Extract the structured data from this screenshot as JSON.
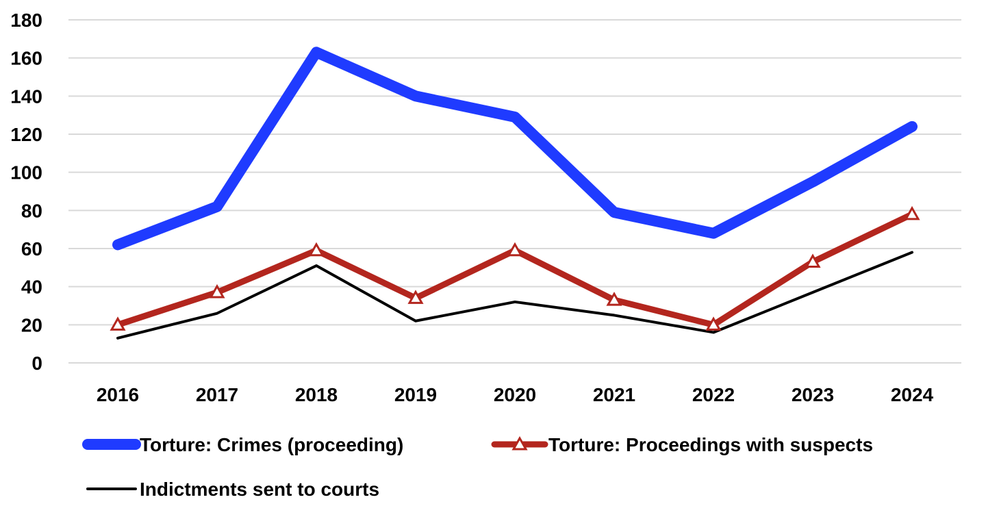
{
  "chart_data": {
    "type": "line",
    "categories": [
      "2016",
      "2017",
      "2018",
      "2019",
      "2020",
      "2021",
      "2022",
      "2023",
      "2024"
    ],
    "ylim": [
      0,
      180
    ],
    "yticks": [
      0,
      20,
      40,
      60,
      80,
      100,
      120,
      140,
      160,
      180
    ],
    "grid": true,
    "legend_position": "bottom",
    "series": [
      {
        "name": "Torture: Crimes (proceeding)",
        "values": [
          62,
          82,
          163,
          140,
          129,
          79,
          68,
          95,
          124
        ],
        "color": "#1f3bff",
        "marker": "none"
      },
      {
        "name": "Torture: Proceedings with suspects",
        "values": [
          20,
          37,
          59,
          34,
          59,
          33,
          20,
          53,
          78
        ],
        "color": "#b3261e",
        "marker": "triangle"
      },
      {
        "name": "Indictments sent to courts",
        "values": [
          13,
          26,
          51,
          22,
          32,
          25,
          16,
          37,
          58
        ],
        "color": "#000000",
        "marker": "none"
      }
    ]
  }
}
